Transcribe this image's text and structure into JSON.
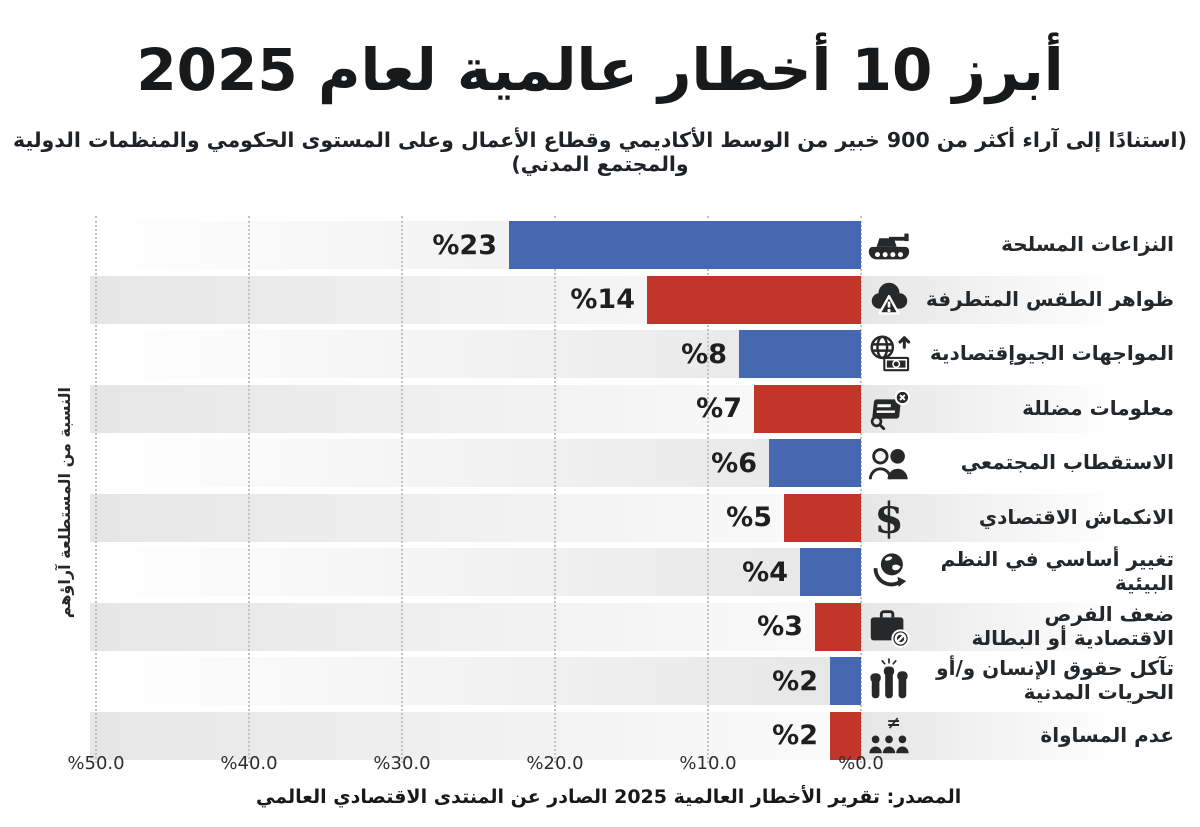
{
  "header": {
    "title": "أبرز 10 أخطار عالمية لعام 2025",
    "subtitle": "(استنادًا إلى آراء أكثر من 900 خبير من الوسط الأكاديمي وقطاع الأعمال وعلى المستوى الحكومي والمنظمات الدولية والمجتمع المدني)"
  },
  "footer": {
    "source": "المصدر: تقرير الأخطار العالمية 2025 الصادر عن المنتدى الاقتصادي العالمي"
  },
  "colors": {
    "bar_blue": "#4568b1",
    "bar_red": "#c2352a",
    "icon_dark": "#26282a",
    "stripe_gray": "#e6e6e6"
  },
  "chart_data": {
    "type": "bar",
    "orientation": "horizontal-rtl",
    "title": "أبرز 10 أخطار عالمية لعام 2025",
    "ylabel": "النسبة من المستطلعة آراؤهم",
    "xlim": [
      0,
      50
    ],
    "grid": "dotted-vertical",
    "x_ticks": [
      "%50.0",
      "%40.0",
      "%30.0",
      "%20.0",
      "%10.0",
      "%0.0"
    ],
    "x_tick_values": [
      50,
      40,
      30,
      20,
      10,
      0
    ],
    "categories": [
      "النزاعات المسلحة",
      "ظواهر الطقس المتطرفة",
      "المواجهات الجيوإقتصادية",
      "معلومات مضللة",
      "الاستقطاب المجتمعي",
      "الانكماش الاقتصادي",
      "تغيير أساسي في النظم البيئية",
      "ضعف الفرص\nالاقتصادية أو البطالة",
      "تآكل حقوق الإنسان و/أو\nالحريات المدنية",
      "عدم المساواة"
    ],
    "values": [
      23,
      14,
      8,
      7,
      6,
      5,
      4,
      3,
      2,
      2
    ],
    "value_labels": [
      "%23",
      "%14",
      "%8",
      "%7",
      "%6",
      "%5",
      "%4",
      "%3",
      "%2",
      "%2"
    ],
    "bar_color_sequence": [
      "#4568b1",
      "#c2352a"
    ],
    "icons": [
      "armed-conflict-tank-icon",
      "extreme-weather-cloud-icon",
      "geoeconomic-globe-money-icon",
      "misinformation-icon",
      "societal-polarization-icon",
      "economic-downturn-dollar-icon",
      "ecosystem-change-globe-icon",
      "unemployment-briefcase-icon",
      "human-rights-fists-icon",
      "inequality-people-icon"
    ]
  }
}
